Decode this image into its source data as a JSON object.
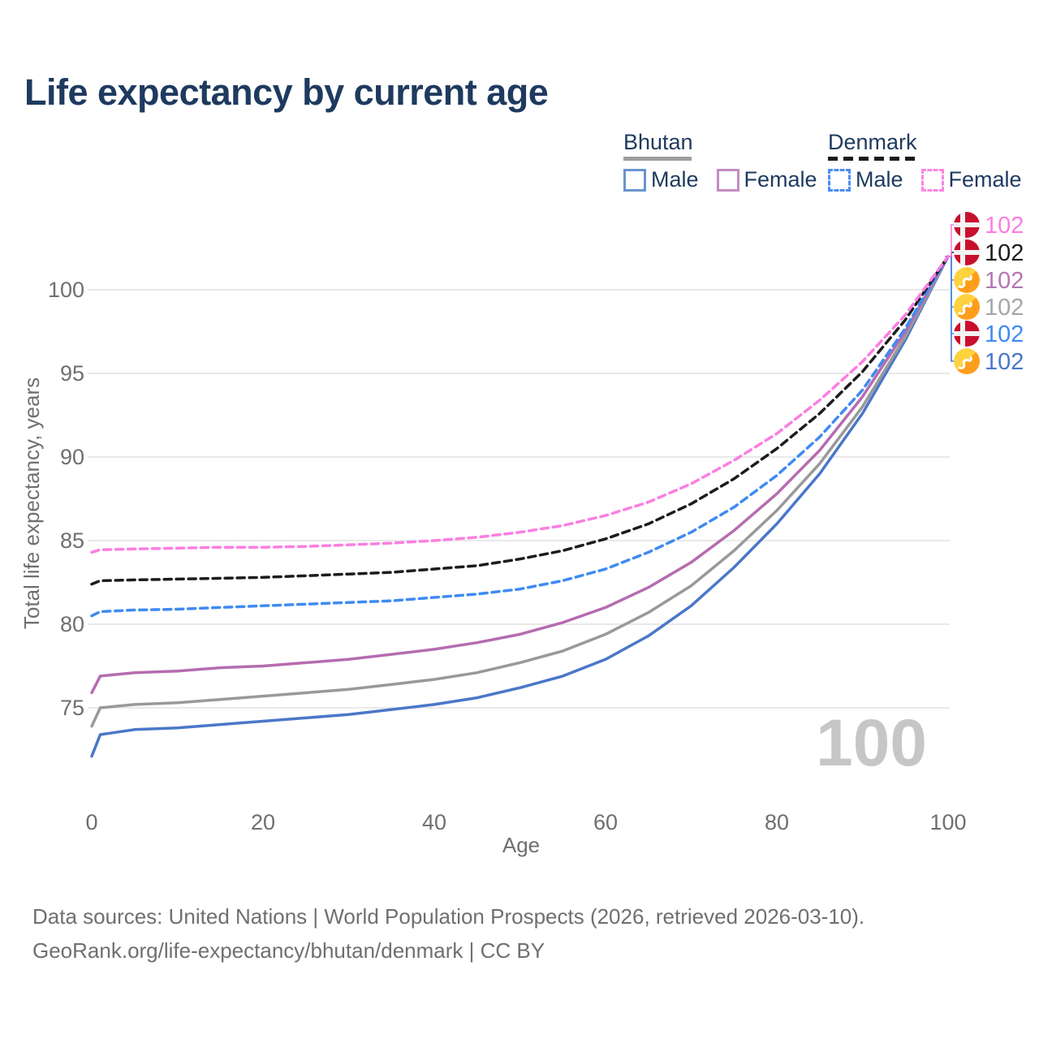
{
  "title": "Life expectancy by current age",
  "watermark": "100",
  "legend": {
    "groups": [
      {
        "name": "Bhutan",
        "line_style": "solid",
        "rule_color": "#9e9e9e",
        "items": [
          {
            "label": "Male",
            "color": "#6b93cf",
            "style": "solid"
          },
          {
            "label": "Female",
            "color": "#c38cc1",
            "style": "solid"
          }
        ]
      },
      {
        "name": "Denmark",
        "line_style": "dashed",
        "rule_color": "#1c1c1c",
        "items": [
          {
            "label": "Male",
            "color": "#4b8df0",
            "style": "dashed"
          },
          {
            "label": "Female",
            "color": "#fb87e0",
            "style": "dashed"
          }
        ]
      }
    ]
  },
  "chart_data": {
    "type": "line",
    "title": "Life expectancy by current age",
    "xlabel": "Age",
    "ylabel": "Total life expectancy, years",
    "x_ticks": [
      0,
      20,
      40,
      60,
      80,
      100
    ],
    "y_ticks": [
      100,
      95,
      90,
      85,
      80,
      75
    ],
    "xlim": [
      0,
      100
    ],
    "ylim": [
      72,
      103
    ],
    "grid": "horizontal",
    "legend_position": "top-right",
    "ages": [
      0,
      1,
      5,
      10,
      15,
      20,
      25,
      30,
      35,
      40,
      45,
      50,
      55,
      60,
      65,
      70,
      75,
      80,
      85,
      90,
      95,
      100
    ],
    "series": [
      {
        "name": "Bhutan Male",
        "country": "Bhutan",
        "sex": "Male",
        "color": "#4a77c9",
        "dashed": false,
        "flag": "bhutan",
        "end_label": "102",
        "end_label_color": "#4a77c9",
        "label_slot": 5,
        "values": [
          72.1,
          73.4,
          73.7,
          73.8,
          74.0,
          74.2,
          74.4,
          74.6,
          74.9,
          75.2,
          75.6,
          76.2,
          76.9,
          77.9,
          79.3,
          81.1,
          83.4,
          86.0,
          89.0,
          92.6,
          97.0,
          102
        ]
      },
      {
        "name": "Bhutan Both sexes",
        "country": "Bhutan",
        "sex": "Both",
        "color": "#999999",
        "dashed": false,
        "flag": "bhutan",
        "end_label": "102",
        "end_label_color": "#a6a6a6",
        "label_slot": 3,
        "values": [
          73.9,
          75.0,
          75.2,
          75.3,
          75.5,
          75.7,
          75.9,
          76.1,
          76.4,
          76.7,
          77.1,
          77.7,
          78.4,
          79.4,
          80.7,
          82.3,
          84.4,
          86.8,
          89.6,
          93.0,
          97.2,
          102
        ]
      },
      {
        "name": "Bhutan Female",
        "country": "Bhutan",
        "sex": "Female",
        "color": "#b56cb0",
        "dashed": false,
        "flag": "bhutan",
        "end_label": "102",
        "end_label_color": "#b576b3",
        "label_slot": 2,
        "values": [
          75.9,
          76.9,
          77.1,
          77.2,
          77.4,
          77.5,
          77.7,
          77.9,
          78.2,
          78.5,
          78.9,
          79.4,
          80.1,
          81.0,
          82.2,
          83.7,
          85.6,
          87.8,
          90.4,
          93.6,
          97.5,
          102
        ]
      },
      {
        "name": "Denmark Male",
        "country": "Denmark",
        "sex": "Male",
        "color": "#3f8bf2",
        "dashed": true,
        "flag": "denmark",
        "end_label": "102",
        "end_label_color": "#3f8bf2",
        "label_slot": 4,
        "values": [
          80.5,
          80.75,
          80.85,
          80.9,
          81.0,
          81.1,
          81.2,
          81.3,
          81.4,
          81.6,
          81.8,
          82.1,
          82.6,
          83.3,
          84.3,
          85.5,
          87.0,
          88.9,
          91.2,
          94.0,
          97.7,
          102
        ]
      },
      {
        "name": "Denmark Both sexes",
        "country": "Denmark",
        "sex": "Both",
        "color": "#1c1c1c",
        "dashed": true,
        "flag": "denmark",
        "end_label": "102",
        "end_label_color": "#1c1c1c",
        "label_slot": 1,
        "values": [
          82.4,
          82.6,
          82.65,
          82.7,
          82.75,
          82.8,
          82.9,
          83.0,
          83.1,
          83.3,
          83.5,
          83.9,
          84.4,
          85.1,
          86.0,
          87.2,
          88.7,
          90.5,
          92.6,
          95.1,
          98.2,
          102
        ]
      },
      {
        "name": "Denmark Female",
        "country": "Denmark",
        "sex": "Female",
        "color": "#fb7ee2",
        "dashed": true,
        "flag": "denmark",
        "end_label": "102",
        "end_label_color": "#fb7ee2",
        "label_slot": 0,
        "values": [
          84.3,
          84.45,
          84.5,
          84.55,
          84.6,
          84.6,
          84.65,
          84.75,
          84.85,
          85.0,
          85.2,
          85.5,
          85.9,
          86.5,
          87.3,
          88.4,
          89.8,
          91.4,
          93.4,
          95.7,
          98.5,
          102
        ]
      }
    ]
  },
  "footer": {
    "line1": "Data sources: United Nations | World Population Prospects (2026, retrieved 2026-03-10).",
    "line2": "GeoRank.org/life-expectancy/bhutan/denmark | CC BY"
  }
}
